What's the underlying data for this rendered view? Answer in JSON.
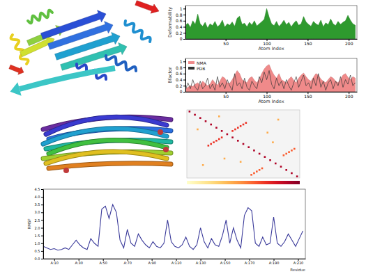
{
  "chart_data": [
    {
      "type": "area",
      "x": [
        1,
        4,
        7,
        10,
        13,
        16,
        19,
        22,
        25,
        28,
        31,
        34,
        37,
        40,
        43,
        46,
        49,
        52,
        55,
        58,
        61,
        64,
        67,
        70,
        73,
        76,
        79,
        82,
        85,
        88,
        91,
        94,
        97,
        100,
        103,
        106,
        109,
        112,
        115,
        118,
        121,
        124,
        127,
        130,
        133,
        136,
        139,
        142,
        145,
        148,
        151,
        154,
        157,
        160,
        163,
        166,
        169,
        172,
        175,
        178,
        181,
        184,
        187,
        190,
        193,
        196,
        199,
        202,
        205,
        208
      ],
      "values": [
        0.45,
        0.52,
        0.38,
        0.6,
        0.48,
        0.82,
        0.5,
        0.42,
        0.55,
        0.36,
        0.5,
        0.44,
        0.58,
        0.4,
        0.47,
        0.62,
        0.39,
        0.5,
        0.45,
        0.56,
        0.42,
        0.68,
        0.75,
        0.48,
        0.52,
        0.4,
        0.55,
        0.46,
        0.6,
        0.43,
        0.5,
        0.57,
        0.65,
        1.0,
        0.72,
        0.5,
        0.44,
        0.58,
        0.41,
        0.5,
        0.62,
        0.47,
        0.55,
        0.4,
        0.52,
        0.6,
        0.45,
        0.5,
        0.74,
        0.56,
        0.48,
        0.42,
        0.58,
        0.5,
        0.45,
        0.62,
        0.4,
        0.53,
        0.47,
        0.66,
        0.5,
        0.44,
        0.58,
        0.48,
        0.55,
        0.6,
        0.78,
        0.62,
        0.5,
        0.45
      ],
      "color": "#2e9a2e",
      "xlim": [
        1,
        210
      ],
      "ylim": [
        0,
        1.1
      ],
      "xticks": [
        50,
        100,
        150,
        200
      ],
      "yticks": [
        0,
        0.2,
        0.4,
        0.6,
        0.8,
        1
      ],
      "xlabel": "Atom Index",
      "ylabel": "Deformability"
    },
    {
      "type": "line",
      "x": [
        1,
        4,
        7,
        10,
        13,
        16,
        19,
        22,
        25,
        28,
        31,
        34,
        37,
        40,
        43,
        46,
        49,
        52,
        55,
        58,
        61,
        64,
        67,
        70,
        73,
        76,
        79,
        82,
        85,
        88,
        91,
        94,
        97,
        100,
        103,
        106,
        109,
        112,
        115,
        118,
        121,
        124,
        127,
        130,
        133,
        136,
        139,
        142,
        145,
        148,
        151,
        154,
        157,
        160,
        163,
        166,
        169,
        172,
        175,
        178,
        181,
        184,
        187,
        190,
        193,
        196,
        199,
        202,
        205,
        208
      ],
      "series": [
        {
          "name": "NMA",
          "type": "area",
          "color": "#f08a8a",
          "values": [
            0.1,
            0.15,
            0.2,
            0.18,
            0.25,
            0.3,
            0.22,
            0.35,
            0.28,
            0.2,
            0.25,
            0.4,
            0.3,
            0.22,
            0.35,
            0.5,
            0.45,
            0.3,
            0.28,
            0.4,
            0.55,
            0.7,
            0.6,
            0.4,
            0.35,
            0.3,
            0.45,
            0.5,
            0.38,
            0.3,
            0.42,
            0.6,
            0.75,
            0.85,
            0.9,
            0.7,
            0.55,
            0.45,
            0.6,
            0.4,
            0.35,
            0.3,
            0.42,
            0.5,
            0.38,
            0.3,
            0.45,
            0.55,
            0.62,
            0.5,
            0.4,
            0.35,
            0.48,
            0.6,
            0.55,
            0.42,
            0.35,
            0.3,
            0.4,
            0.5,
            0.45,
            0.35,
            0.3,
            0.42,
            0.55,
            0.6,
            0.48,
            0.4,
            0.5,
            0.45
          ]
        },
        {
          "name": "PDB",
          "type": "line",
          "color": "#333333",
          "values": [
            0.05,
            0.3,
            0.1,
            0.4,
            0.15,
            0.05,
            0.35,
            0.1,
            0.2,
            0.45,
            0.1,
            0.25,
            0.05,
            0.5,
            0.15,
            0.3,
            0.1,
            0.4,
            0.2,
            0.05,
            0.6,
            0.2,
            0.3,
            0.1,
            0.45,
            0.15,
            0.05,
            0.35,
            0.2,
            0.1,
            0.5,
            0.3,
            0.65,
            0.4,
            0.7,
            0.25,
            0.1,
            0.45,
            0.2,
            0.35,
            0.1,
            0.4,
            0.2,
            0.05,
            0.3,
            0.5,
            0.15,
            0.35,
            0.55,
            0.2,
            0.3,
            0.1,
            0.45,
            0.2,
            0.6,
            0.15,
            0.35,
            0.05,
            0.3,
            0.4,
            0.1,
            0.35,
            0.2,
            0.5,
            0.15,
            0.4,
            0.25,
            0.55,
            0.2,
            0.3
          ]
        }
      ],
      "xlim": [
        1,
        210
      ],
      "ylim": [
        0,
        1.1
      ],
      "xticks": [
        50,
        100,
        150,
        200
      ],
      "yticks": [
        0,
        0.2,
        0.4,
        0.6,
        0.8,
        1
      ],
      "xlabel": "Atom Index",
      "ylabel": "Bfactor",
      "legend": "upper left"
    },
    {
      "type": "scatter",
      "x": [
        5,
        15,
        25,
        35,
        45,
        55,
        65,
        75,
        85,
        95,
        105,
        115,
        125,
        135,
        145,
        155,
        165,
        175,
        185,
        195,
        205,
        40,
        45,
        50,
        55,
        60,
        65,
        110,
        105,
        100,
        95,
        90,
        85,
        120,
        125,
        130,
        135,
        140,
        200,
        195,
        190,
        185,
        180,
        20,
        60,
        150,
        70,
        30,
        170,
        100,
        160
      ],
      "y": [
        5,
        15,
        25,
        35,
        45,
        55,
        65,
        75,
        85,
        95,
        105,
        115,
        125,
        135,
        145,
        155,
        165,
        175,
        185,
        195,
        205,
        110,
        105,
        100,
        95,
        90,
        85,
        40,
        45,
        50,
        55,
        60,
        65,
        200,
        195,
        190,
        185,
        180,
        120,
        125,
        130,
        135,
        140,
        60,
        20,
        70,
        150,
        170,
        30,
        160,
        100
      ],
      "z": [
        0.9,
        0.9,
        0.9,
        0.9,
        0.9,
        0.9,
        0.9,
        0.9,
        0.9,
        0.9,
        0.9,
        0.9,
        0.9,
        0.9,
        0.9,
        0.9,
        0.9,
        0.9,
        0.9,
        0.9,
        0.9,
        0.7,
        0.7,
        0.7,
        0.7,
        0.7,
        0.7,
        0.7,
        0.7,
        0.7,
        0.7,
        0.7,
        0.7,
        0.6,
        0.6,
        0.6,
        0.6,
        0.6,
        0.6,
        0.6,
        0.6,
        0.6,
        0.6,
        0.4,
        0.4,
        0.4,
        0.4,
        0.4,
        0.4,
        0.4,
        0.4
      ],
      "xlim": [
        0,
        210
      ],
      "ylim": [
        0,
        210
      ],
      "zlim": [
        0,
        1
      ],
      "tick_labels": false
    },
    {
      "type": "line",
      "x": [
        1,
        4,
        7,
        10,
        13,
        16,
        19,
        22,
        25,
        28,
        31,
        34,
        37,
        40,
        43,
        46,
        49,
        52,
        55,
        58,
        61,
        64,
        67,
        70,
        73,
        76,
        79,
        82,
        85,
        88,
        91,
        94,
        97,
        100,
        103,
        106,
        109,
        112,
        115,
        118,
        121,
        124,
        127,
        130,
        133,
        136,
        139,
        142,
        145,
        148,
        151,
        154,
        157,
        160,
        163,
        166,
        169,
        172,
        175,
        178,
        181,
        184,
        187,
        190,
        193,
        196,
        199,
        202,
        205,
        208,
        211,
        214
      ],
      "values": [
        0.8,
        0.7,
        0.6,
        0.65,
        0.55,
        0.6,
        0.7,
        0.6,
        0.9,
        1.2,
        0.9,
        0.7,
        0.6,
        1.3,
        1.0,
        0.8,
        3.2,
        3.4,
        2.6,
        3.5,
        3.0,
        1.2,
        0.7,
        1.9,
        1.0,
        0.8,
        1.6,
        1.2,
        0.9,
        0.7,
        1.1,
        0.8,
        0.7,
        1.0,
        2.5,
        1.1,
        0.8,
        0.7,
        0.9,
        1.4,
        0.8,
        0.6,
        0.9,
        2.0,
        1.1,
        0.7,
        1.3,
        0.9,
        0.8,
        1.5,
        2.5,
        1.0,
        2.0,
        1.2,
        0.7,
        2.8,
        3.3,
        3.1,
        1.0,
        0.8,
        1.4,
        0.9,
        1.0,
        2.7,
        1.0,
        0.8,
        1.1,
        1.6,
        1.2,
        0.8,
        1.3,
        1.8
      ],
      "color": "#3a3a9a",
      "xlim": [
        1,
        216
      ],
      "ylim": [
        0,
        4.5
      ],
      "xticks": [
        {
          "value": 10,
          "label": "A:10"
        },
        {
          "value": 30,
          "label": "A:30"
        },
        {
          "value": 50,
          "label": "A:50"
        },
        {
          "value": 70,
          "label": "A:70"
        },
        {
          "value": 90,
          "label": "A:90"
        },
        {
          "value": 110,
          "label": "A:110"
        },
        {
          "value": 130,
          "label": "A:130"
        },
        {
          "value": 150,
          "label": "A:150"
        },
        {
          "value": 170,
          "label": "A:170"
        },
        {
          "value": 190,
          "label": "A:190"
        },
        {
          "value": 210,
          "label": "A:210"
        }
      ],
      "yticks": [
        {
          "value": 0,
          "label": "0.0"
        },
        {
          "value": 0.5,
          "label": "0.5"
        },
        {
          "value": 1,
          "label": "1.0"
        },
        {
          "value": 1.5,
          "label": "1.5"
        },
        {
          "value": 2,
          "label": "2.0"
        },
        {
          "value": 2.5,
          "label": "2.5"
        },
        {
          "value": 3,
          "label": "3.0"
        },
        {
          "value": 3.5,
          "label": "3.5"
        },
        {
          "value": 4,
          "label": "4.0"
        },
        {
          "value": 4.5,
          "label": "4.5"
        }
      ],
      "xlabel": "Residue",
      "ylabel": "RMSF"
    }
  ]
}
